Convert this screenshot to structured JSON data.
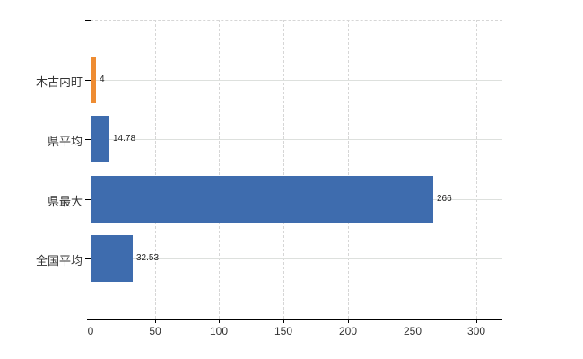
{
  "chart_data": {
    "type": "bar",
    "orientation": "horizontal",
    "title": "",
    "categories": [
      "木古内町",
      "県平均",
      "県最大",
      "全国平均"
    ],
    "values": [
      4,
      14.78,
      266,
      32.53
    ],
    "value_labels": [
      "4",
      "14.78",
      "266",
      "32.53"
    ],
    "point_colors": [
      "#EE8C32",
      "#3E6CAE",
      "#3E6CAE",
      "#3E6CAE"
    ],
    "x_ticks": [
      0,
      50,
      100,
      150,
      200,
      250,
      300
    ],
    "x_tick_labels": [
      "0",
      "50",
      "100",
      "150",
      "200",
      "250",
      "300"
    ],
    "xlim": [
      0,
      320
    ],
    "grid": true,
    "legend": "none",
    "colors": {
      "axis": "#000000",
      "grid_vertical": "#D6D6D6",
      "grid_horizontal": "#DDE0DD",
      "text": "#333333",
      "value_text": "#222222"
    }
  }
}
